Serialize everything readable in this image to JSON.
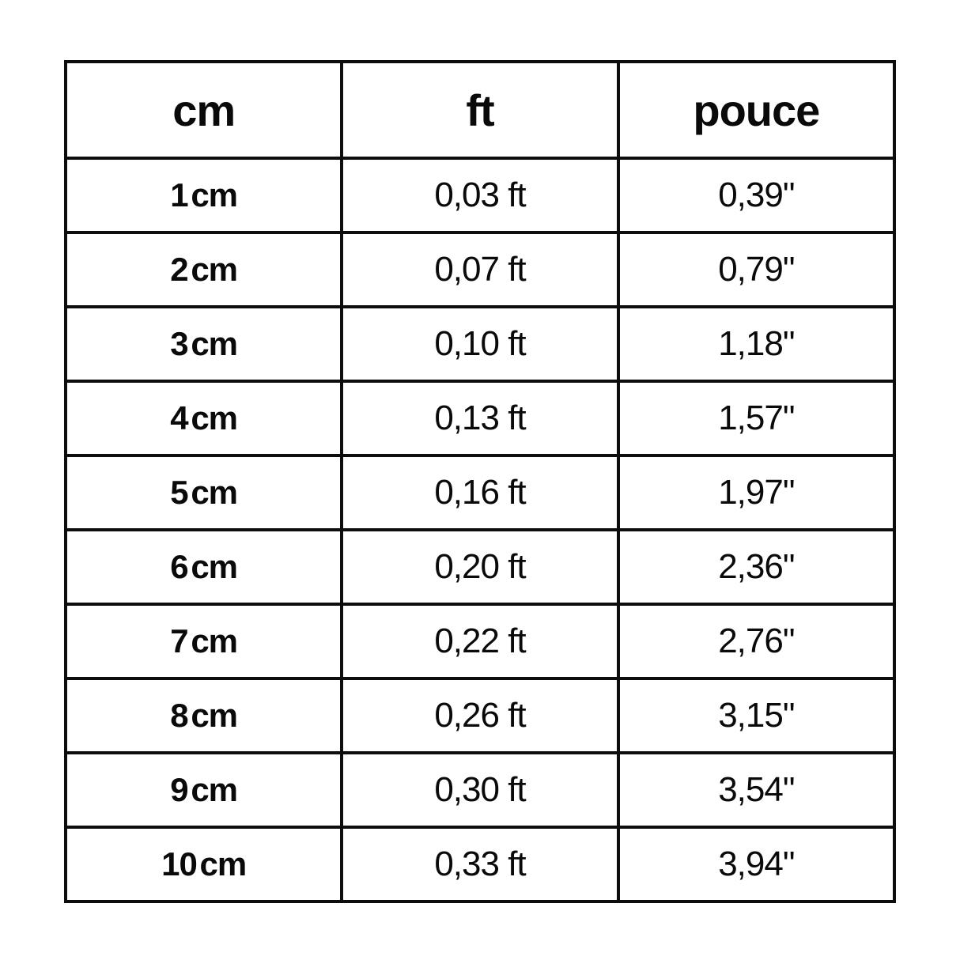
{
  "table": {
    "headers": [
      "cm",
      "ft",
      "pouce"
    ],
    "rows": [
      {
        "cm": "1 cm",
        "ft": "0,03 ft",
        "pouce": "0,39\""
      },
      {
        "cm": "2 cm",
        "ft": "0,07 ft",
        "pouce": "0,79\""
      },
      {
        "cm": "3 cm",
        "ft": "0,10 ft",
        "pouce": "1,18\""
      },
      {
        "cm": "4 cm",
        "ft": "0,13 ft",
        "pouce": "1,57\""
      },
      {
        "cm": "5 cm",
        "ft": "0,16 ft",
        "pouce": "1,97\""
      },
      {
        "cm": "6 cm",
        "ft": "0,20 ft",
        "pouce": "2,36\""
      },
      {
        "cm": "7 cm",
        "ft": "0,22 ft",
        "pouce": "2,76\""
      },
      {
        "cm": "8 cm",
        "ft": "0,26 ft",
        "pouce": "3,15\""
      },
      {
        "cm": "9 cm",
        "ft": "0,30 ft",
        "pouce": "3,54\""
      },
      {
        "cm": "10 cm",
        "ft": "0,33 ft",
        "pouce": "3,94\""
      }
    ]
  },
  "chart_data": {
    "type": "table",
    "columns": [
      "cm",
      "ft",
      "pouce"
    ],
    "rows": [
      [
        "1 cm",
        "0,03 ft",
        "0,39\""
      ],
      [
        "2 cm",
        "0,07 ft",
        "0,79\""
      ],
      [
        "3 cm",
        "0,10 ft",
        "1,18\""
      ],
      [
        "4 cm",
        "0,13 ft",
        "1,57\""
      ],
      [
        "5 cm",
        "0,16 ft",
        "1,97\""
      ],
      [
        "6 cm",
        "0,20 ft",
        "2,36\""
      ],
      [
        "7 cm",
        "0,22 ft",
        "2,76\""
      ],
      [
        "8 cm",
        "0,26 ft",
        "3,15\""
      ],
      [
        "9 cm",
        "0,30 ft",
        "3,54\""
      ],
      [
        "10 cm",
        "0,33 ft",
        "3,94\""
      ]
    ],
    "cm_values": [
      1,
      2,
      3,
      4,
      5,
      6,
      7,
      8,
      9,
      10
    ],
    "ft_values": [
      0.03,
      0.07,
      0.1,
      0.13,
      0.16,
      0.2,
      0.22,
      0.26,
      0.3,
      0.33
    ],
    "pouce_values": [
      0.39,
      0.79,
      1.18,
      1.57,
      1.97,
      2.36,
      2.76,
      3.15,
      3.54,
      3.94
    ]
  }
}
